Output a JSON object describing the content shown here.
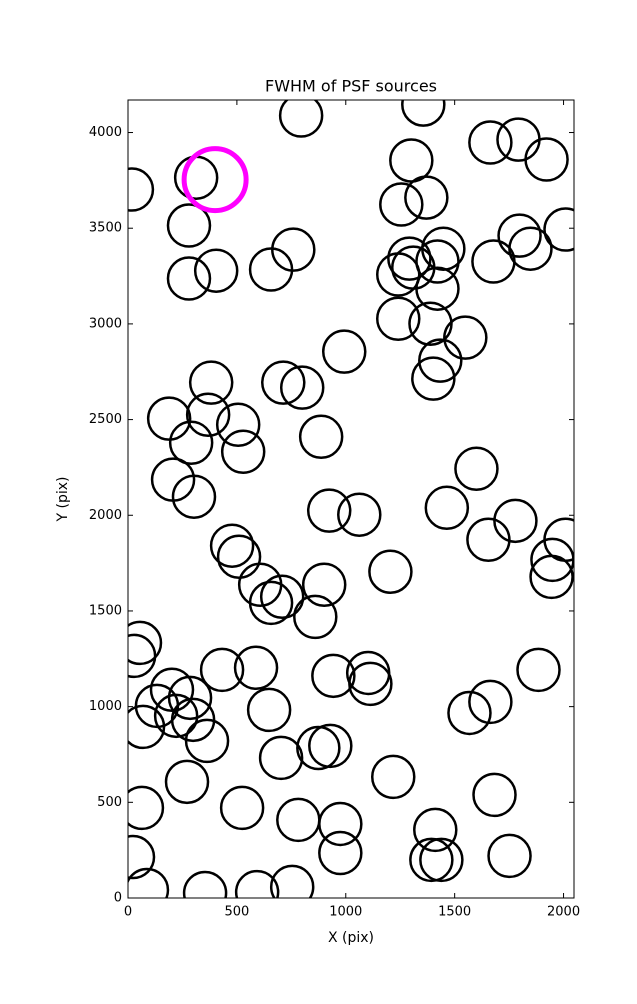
{
  "chart_data": {
    "type": "scatter",
    "title": "FWHM of PSF sources",
    "x_label": "X (pix)",
    "y_label": "Y (pix)",
    "xlim": [
      0,
      2048
    ],
    "ylim": [
      0,
      4170
    ],
    "xticks": [
      0,
      500,
      1000,
      1500,
      2000
    ],
    "yticks": [
      0,
      500,
      1000,
      1500,
      2000,
      2500,
      3000,
      3500,
      4000
    ],
    "series": [
      {
        "color": "#000000",
        "x": [
          18,
          313,
          280,
          280,
          405,
          795,
          759,
          657,
          1356,
          1664,
          1793,
          1922,
          2009,
          1301,
          1255,
          1370,
          1678,
          1798,
          1848,
          1448,
          1421,
          1292,
          1241,
          1310,
          1421,
          1241,
          1389,
          1549,
          1434,
          1402,
          993,
          713,
          800,
          382,
          368,
          189,
          506,
          290,
          529,
          887,
          207,
          303,
          1600,
          1464,
          924,
          1062,
          1779,
          1655,
          2009,
          1949,
          1945,
          1205,
          478,
          510,
          607,
          708,
          657,
          901,
          860,
          55,
          28,
          202,
          285,
          133,
          221,
          299,
          69,
          363,
          432,
          588,
          648,
          703,
          874,
          929,
          943,
          1103,
          1113,
          1568,
          1664,
          1885,
          271,
          64,
          524,
          1218,
          1683,
          782,
          975,
          975,
          1411,
          1393,
          1439,
          1752,
          23,
          87,
          354,
          593,
          754
        ],
        "y": [
          3702,
          3764,
          3514,
          3237,
          3278,
          4089,
          3388,
          3284,
          4146,
          3948,
          3963,
          3859,
          3493,
          3854,
          3624,
          3660,
          3326,
          3461,
          3393,
          3393,
          3326,
          3341,
          3258,
          3294,
          3184,
          3027,
          3001,
          2928,
          2808,
          2714,
          2855,
          2693,
          2667,
          2693,
          2525,
          2505,
          2473,
          2379,
          2332,
          2410,
          2186,
          2097,
          2243,
          2039,
          2024,
          2003,
          1971,
          1872,
          1872,
          1767,
          1678,
          1705,
          1841,
          1783,
          1637,
          1574,
          1542,
          1637,
          1469,
          1333,
          1265,
          1088,
          1046,
          1004,
          952,
          931,
          894,
          821,
          1192,
          1203,
          983,
          732,
          784,
          795,
          1161,
          1176,
          1119,
          967,
          1025,
          1192,
          607,
          471,
          471,
          633,
          539,
          408,
          387,
          235,
          356,
          199,
          199,
          220,
          214,
          42,
          26,
          31,
          58
        ]
      },
      {
        "color": "#ff00ff",
        "x": [
          400
        ],
        "y": [
          3754
        ]
      }
    ]
  }
}
